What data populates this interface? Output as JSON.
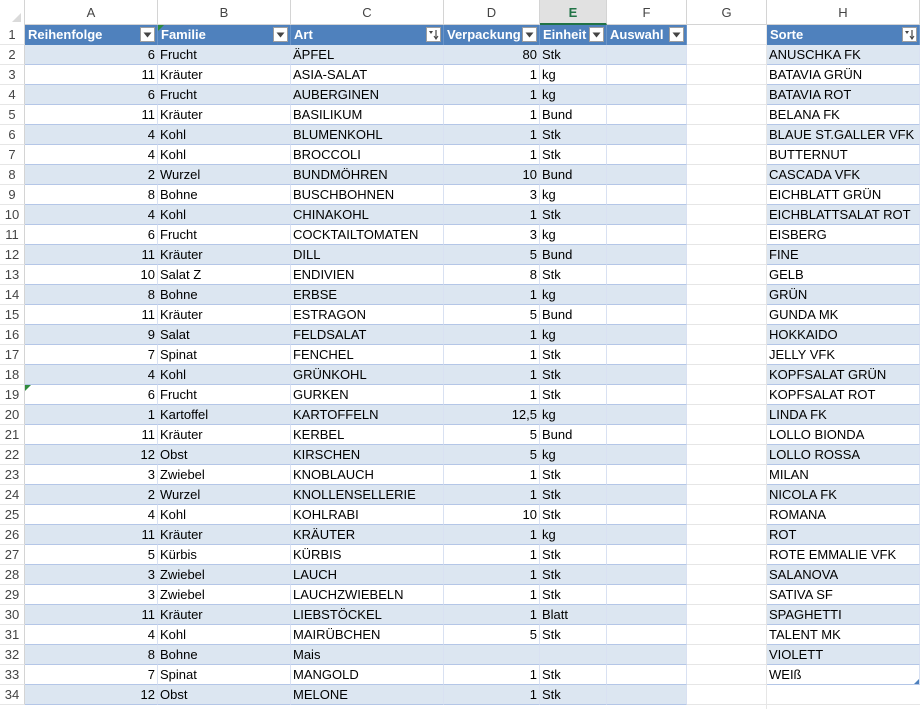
{
  "columns": [
    "A",
    "B",
    "C",
    "D",
    "E",
    "F",
    "G",
    "H"
  ],
  "active_column": "E",
  "table1": {
    "headers": [
      "Reihenfolge",
      "Familie",
      "Art",
      "Verpackung",
      "Einheit",
      "Auswahl"
    ],
    "filter_icons": [
      "dropdown-icon",
      "dropdown-icon",
      "sort-asc-icon",
      "dropdown-icon",
      "dropdown-icon",
      "dropdown-icon"
    ],
    "rows": [
      [
        "6",
        "Frucht",
        "ÄPFEL",
        "80",
        "Stk",
        ""
      ],
      [
        "11",
        "Kräuter",
        "ASIA-SALAT",
        "1",
        "kg",
        ""
      ],
      [
        "6",
        "Frucht",
        "AUBERGINEN",
        "1",
        "kg",
        ""
      ],
      [
        "11",
        "Kräuter",
        "BASILIKUM",
        "1",
        "Bund",
        ""
      ],
      [
        "4",
        "Kohl",
        "BLUMENKOHL",
        "1",
        "Stk",
        ""
      ],
      [
        "4",
        "Kohl",
        "BROCCOLI",
        "1",
        "Stk",
        ""
      ],
      [
        "2",
        "Wurzel",
        "BUNDMÖHREN",
        "10",
        "Bund",
        ""
      ],
      [
        "8",
        "Bohne",
        "BUSCHBOHNEN",
        "3",
        "kg",
        ""
      ],
      [
        "4",
        "Kohl",
        "CHINAKOHL",
        "1",
        "Stk",
        ""
      ],
      [
        "6",
        "Frucht",
        "COCKTAILTOMATEN",
        "3",
        "kg",
        ""
      ],
      [
        "11",
        "Kräuter",
        "DILL",
        "5",
        "Bund",
        ""
      ],
      [
        "10",
        "Salat Z",
        "ENDIVIEN",
        "8",
        "Stk",
        ""
      ],
      [
        "8",
        "Bohne",
        "ERBSE",
        "1",
        "kg",
        ""
      ],
      [
        "11",
        "Kräuter",
        "ESTRAGON",
        "5",
        "Bund",
        ""
      ],
      [
        "9",
        "Salat",
        "FELDSALAT",
        "1",
        "kg",
        ""
      ],
      [
        "7",
        "Spinat",
        "FENCHEL",
        "1",
        "Stk",
        ""
      ],
      [
        "4",
        "Kohl",
        "GRÜNKOHL",
        "1",
        "Stk",
        ""
      ],
      [
        "6",
        "Frucht",
        "GURKEN",
        "1",
        "Stk",
        ""
      ],
      [
        "1",
        "Kartoffel",
        "KARTOFFELN",
        "12,5",
        "kg",
        ""
      ],
      [
        "11",
        "Kräuter",
        "KERBEL",
        "5",
        "Bund",
        ""
      ],
      [
        "12",
        "Obst",
        "KIRSCHEN",
        "5",
        "kg",
        ""
      ],
      [
        "3",
        "Zwiebel",
        "KNOBLAUCH",
        "1",
        "Stk",
        ""
      ],
      [
        "2",
        "Wurzel",
        "KNOLLENSELLERIE",
        "1",
        "Stk",
        ""
      ],
      [
        "4",
        "Kohl",
        "KOHLRABI",
        "10",
        "Stk",
        ""
      ],
      [
        "11",
        "Kräuter",
        "KRÄUTER",
        "1",
        "kg",
        ""
      ],
      [
        "5",
        "Kürbis",
        "KÜRBIS",
        "1",
        "Stk",
        ""
      ],
      [
        "3",
        "Zwiebel",
        "LAUCH",
        "1",
        "Stk",
        ""
      ],
      [
        "3",
        "Zwiebel",
        "LAUCHZWIEBELN",
        "1",
        "Stk",
        ""
      ],
      [
        "11",
        "Kräuter",
        "LIEBSTÖCKEL",
        "1",
        "Blatt",
        ""
      ],
      [
        "4",
        "Kohl",
        "MAIRÜBCHEN",
        "5",
        "Stk",
        ""
      ],
      [
        "8",
        "Bohne",
        "Mais",
        "",
        "",
        " "
      ],
      [
        "7",
        "Spinat",
        "MANGOLD",
        "1",
        "Stk",
        ""
      ],
      [
        "12",
        "Obst",
        "MELONE",
        "1",
        "Stk",
        ""
      ]
    ]
  },
  "table2": {
    "header": "Sorte",
    "filter_icon": "sort-asc-icon",
    "rows": [
      "ANUSCHKA FK",
      "BATAVIA GRÜN",
      "BATAVIA ROT",
      "BELANA FK",
      "BLAUE ST.GALLER VFK",
      "BUTTERNUT",
      "CASCADA VFK",
      "EICHBLATT GRÜN",
      "EICHBLATTSALAT ROT",
      "EISBERG",
      "FINE",
      "GELB",
      "GRÜN",
      "GUNDA MK",
      "HOKKAIDO",
      "JELLY VFK",
      "KOPFSALAT GRÜN",
      "KOPFSALAT ROT",
      "LINDA FK",
      "LOLLO BIONDA",
      "LOLLO ROSSA",
      "MILAN",
      "NICOLA FK",
      "ROMANA",
      "ROT",
      "ROTE EMMALIE  VFK",
      "SALANOVA",
      "SATIVA SF",
      "SPAGHETTI",
      "TALENT MK",
      "VIOLETT",
      "WEIß"
    ]
  },
  "row_numbers": [
    "1",
    "2",
    "3",
    "4",
    "5",
    "6",
    "7",
    "8",
    "9",
    "10",
    "11",
    "12",
    "13",
    "14",
    "15",
    "16",
    "17",
    "18",
    "19",
    "20",
    "21",
    "22",
    "23",
    "24",
    "25",
    "26",
    "27",
    "28",
    "29",
    "30",
    "31",
    "32",
    "33",
    "34"
  ],
  "colors": {
    "table_header": "#4f81bd",
    "band": "#dce6f1",
    "active_column": "#217346"
  }
}
